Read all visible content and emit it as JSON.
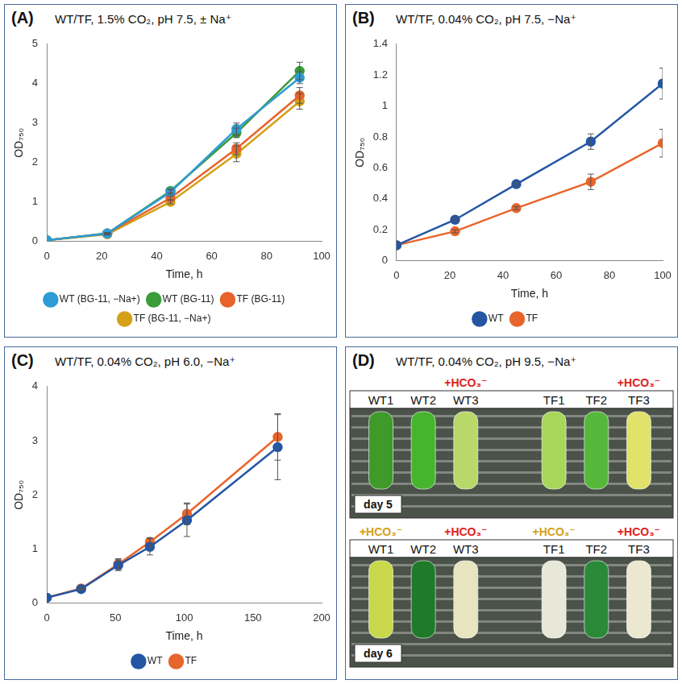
{
  "chart_data": [
    {
      "type": "line",
      "panel_label": "(A)",
      "title": "WT/TF, 1.5% CO₂, pH 7.5, ± Na⁺",
      "x_label": "Time, h",
      "y_label": "OD₇₅₀",
      "x": [
        0,
        22,
        45,
        69,
        92
      ],
      "xlim": [
        0,
        100
      ],
      "xticks": [
        0,
        20,
        40,
        60,
        80,
        100
      ],
      "ylim": [
        0,
        5
      ],
      "yticks": [
        0,
        1,
        2,
        3,
        4,
        5
      ],
      "grid": false,
      "legend": "bottom",
      "marker": "circle",
      "line_style": "solid",
      "series": [
        {
          "name": "WT (BG-11, −Na+)",
          "color": "#2e9bd6",
          "values": [
            0.03,
            0.2,
            1.25,
            2.85,
            4.15
          ],
          "errors": [
            0,
            0.02,
            0.05,
            0.15,
            0.15
          ]
        },
        {
          "name": "WT (BG-11)",
          "color": "#3a9c3a",
          "values": [
            0.03,
            0.2,
            1.28,
            2.75,
            4.32
          ],
          "errors": [
            0,
            0.02,
            0.05,
            0.12,
            0.22
          ]
        },
        {
          "name": "TF (BG-11)",
          "color": "#e8622c",
          "values": [
            0.03,
            0.2,
            1.1,
            2.35,
            3.7
          ],
          "errors": [
            0,
            0.02,
            0.05,
            0.15,
            0.2
          ]
        },
        {
          "name": "TF (BG-11, −Na+)",
          "color": "#d4a017",
          "values": [
            0.03,
            0.18,
            1.0,
            2.22,
            3.55
          ],
          "errors": [
            0,
            0.02,
            0.05,
            0.2,
            0.2
          ]
        }
      ]
    },
    {
      "type": "line",
      "panel_label": "(B)",
      "title": "WT/TF, 0.04% CO₂, pH 7.5, −Na⁺",
      "x_label": "Time, h",
      "y_label": "OD₇₅₀",
      "x": [
        0,
        22,
        45,
        73,
        100
      ],
      "xlim": [
        0,
        100
      ],
      "xticks": [
        0,
        20,
        40,
        60,
        80,
        100
      ],
      "ylim": [
        0,
        1.4
      ],
      "yticks": [
        0,
        0.2,
        0.4,
        0.6,
        0.8,
        1,
        1.2,
        1.4
      ],
      "grid": false,
      "legend": "bottom",
      "marker": "circle",
      "line_style": "solid",
      "series": [
        {
          "name": "WT",
          "color": "#2456a4",
          "values": [
            0.1,
            0.265,
            0.495,
            0.77,
            1.145
          ],
          "errors": [
            0,
            0.01,
            0.01,
            0.05,
            0.1
          ]
        },
        {
          "name": "TF",
          "color": "#e8652b",
          "values": [
            0.1,
            0.19,
            0.34,
            0.51,
            0.76
          ],
          "errors": [
            0,
            0.01,
            0.01,
            0.05,
            0.09
          ]
        }
      ]
    },
    {
      "type": "line",
      "panel_label": "(C)",
      "title": "WT/TF, 0.04% CO₂, pH 6.0, −Na⁺",
      "x_label": "Time, h",
      "y_label": "OD₇₅₀",
      "x": [
        0,
        25,
        52,
        75,
        102,
        168
      ],
      "xlim": [
        0,
        200
      ],
      "xticks": [
        0,
        50,
        100,
        150,
        200
      ],
      "ylim": [
        0,
        4
      ],
      "yticks": [
        0,
        1,
        2,
        3,
        4
      ],
      "grid": false,
      "legend": "bottom",
      "marker": "circle",
      "line_style": "solid",
      "series": [
        {
          "name": "WT",
          "color": "#2456a4",
          "values": [
            0.1,
            0.26,
            0.7,
            1.04,
            1.53,
            2.88
          ],
          "errors": [
            0,
            0.02,
            0.1,
            0.15,
            0.3,
            0.6
          ]
        },
        {
          "name": "TF",
          "color": "#e8652b",
          "values": [
            0.1,
            0.27,
            0.72,
            1.13,
            1.65,
            3.07
          ],
          "errors": [
            0,
            0.02,
            0.1,
            0.08,
            0.2,
            0.43
          ]
        }
      ]
    }
  ],
  "photo": {
    "panel_label": "(D)",
    "title": "WT/TF, 0.04% CO₂, pH 9.5, −Na⁺",
    "images": [
      {
        "label": "day 5",
        "tubes": [
          {
            "name": "WT1",
            "color": "#3f9a2a"
          },
          {
            "name": "WT2",
            "color": "#45b52e"
          },
          {
            "name": "WT3",
            "color": "#b8d86a",
            "annotation": {
              "text": "+HCO₃⁻",
              "color": "#e02020"
            }
          },
          {
            "name": "TF1",
            "color": "#a8d65a"
          },
          {
            "name": "TF2",
            "color": "#55b83a"
          },
          {
            "name": "TF3",
            "color": "#e0e26a",
            "annotation": {
              "text": "+HCO₃⁻",
              "color": "#e02020"
            }
          }
        ]
      },
      {
        "label": "day 6",
        "tubes": [
          {
            "name": "WT1",
            "color": "#c8d84a",
            "annotation": {
              "text": "+HCO₃⁻",
              "color": "#d4a017"
            }
          },
          {
            "name": "WT2",
            "color": "#1f7a2a"
          },
          {
            "name": "WT3",
            "color": "#e8e4c0",
            "annotation": {
              "text": "+HCO₃⁻",
              "color": "#e02020"
            }
          },
          {
            "name": "TF1",
            "color": "#e8e8d8",
            "annotation": {
              "text": "+HCO₃⁻",
              "color": "#d4a017"
            }
          },
          {
            "name": "TF2",
            "color": "#2a8a3a"
          },
          {
            "name": "TF3",
            "color": "#ece8d0",
            "annotation": {
              "text": "+HCO₃⁻",
              "color": "#e02020"
            }
          }
        ]
      }
    ]
  }
}
